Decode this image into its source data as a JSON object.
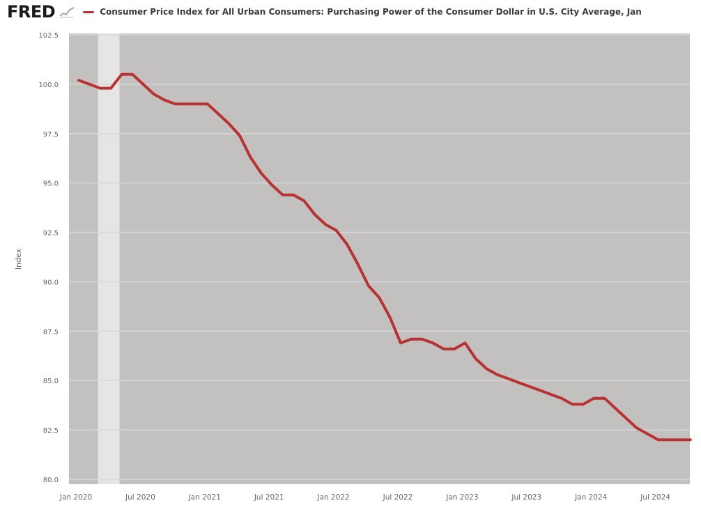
{
  "header": {
    "logo_text": "FRED",
    "series_title": "Consumer Price Index for All Urban Consumers: Purchasing Power of the Consumer Dollar in U.S. City Average, Jan"
  },
  "colors": {
    "series_line": "#b83232",
    "plot_background": "#c3c0c0",
    "recession_band": "#e6e4e4",
    "gridline": "#d8d6d6",
    "axis_text": "#666666"
  },
  "chart_data": {
    "type": "line",
    "title": "Consumer Price Index for All Urban Consumers: Purchasing Power of the Consumer Dollar in U.S. City Average, Jan",
    "xlabel": "",
    "ylabel": "Index",
    "ylim": [
      80.0,
      102.5
    ],
    "yticks": [
      "80.0",
      "82.5",
      "85.0",
      "87.5",
      "90.0",
      "92.5",
      "95.0",
      "97.5",
      "100.0",
      "102.5"
    ],
    "xticks": [
      "Jan 2020",
      "Jul 2020",
      "Jan 2021",
      "Jul 2021",
      "Jan 2022",
      "Jul 2022",
      "Jan 2023",
      "Jul 2023",
      "Jan 2024",
      "Jul 2024"
    ],
    "grid": true,
    "recession": {
      "start": "2020-03",
      "end": "2020-04"
    },
    "series": [
      {
        "name": "Consumer Price Index for All Urban Consumers: Purchasing Power of the Consumer Dollar in U.S. City Average, Jan",
        "x": [
          "2020-01",
          "2020-02",
          "2020-03",
          "2020-04",
          "2020-05",
          "2020-06",
          "2020-07",
          "2020-08",
          "2020-09",
          "2020-10",
          "2020-11",
          "2020-12",
          "2021-01",
          "2021-02",
          "2021-03",
          "2021-04",
          "2021-05",
          "2021-06",
          "2021-07",
          "2021-08",
          "2021-09",
          "2021-10",
          "2021-11",
          "2021-12",
          "2022-01",
          "2022-02",
          "2022-03",
          "2022-04",
          "2022-05",
          "2022-06",
          "2022-07",
          "2022-08",
          "2022-09",
          "2022-10",
          "2022-11",
          "2022-12",
          "2023-01",
          "2023-02",
          "2023-03",
          "2023-04",
          "2023-05",
          "2023-06",
          "2023-07",
          "2023-08",
          "2023-09",
          "2023-10",
          "2023-11",
          "2023-12",
          "2024-01",
          "2024-02",
          "2024-03",
          "2024-04",
          "2024-05",
          "2024-06",
          "2024-07",
          "2024-08",
          "2024-09",
          "2024-10"
        ],
        "values": [
          100.2,
          100.0,
          99.8,
          99.8,
          100.5,
          100.5,
          100.0,
          99.5,
          99.2,
          99.0,
          99.0,
          99.0,
          99.0,
          98.5,
          98.0,
          97.4,
          96.3,
          95.5,
          94.9,
          94.4,
          94.4,
          94.1,
          93.4,
          92.9,
          92.6,
          91.9,
          90.9,
          89.8,
          89.2,
          88.2,
          86.9,
          87.1,
          87.1,
          86.9,
          86.6,
          86.6,
          86.9,
          86.1,
          85.6,
          85.3,
          85.1,
          84.9,
          84.7,
          84.5,
          84.3,
          84.1,
          83.8,
          83.8,
          84.1,
          84.1,
          83.6,
          83.1,
          82.6,
          82.3,
          82.0,
          82.0,
          82.0,
          82.0
        ]
      }
    ]
  }
}
